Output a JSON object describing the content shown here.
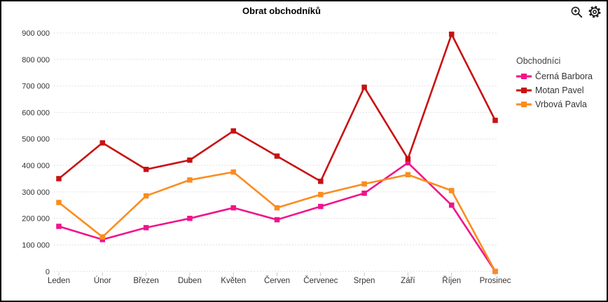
{
  "header": {
    "title": "Obrat obchodníků"
  },
  "toolbar": {
    "zoom_button": "zoom-in",
    "settings_button": "settings"
  },
  "icon_color": "#1a1a1a",
  "chart_data": {
    "type": "line",
    "title": "Obrat obchodníků",
    "legend_title": "Obchodníci",
    "legend_position": "right",
    "grid": "horizontal-dotted",
    "xlabel": "",
    "ylabel": "",
    "ylim": [
      0,
      900000
    ],
    "categories": [
      "Leden",
      "Únor",
      "Březen",
      "Duben",
      "Květen",
      "Červen",
      "Červenec",
      "Srpen",
      "Září",
      "Říjen",
      "Prosinec"
    ],
    "y_ticks": [
      {
        "value": 0,
        "label": "0"
      },
      {
        "value": 100000,
        "label": "100 000"
      },
      {
        "value": 200000,
        "label": "200 000"
      },
      {
        "value": 300000,
        "label": "300 000"
      },
      {
        "value": 400000,
        "label": "400 000"
      },
      {
        "value": 500000,
        "label": "500 000"
      },
      {
        "value": 600000,
        "label": "600 000"
      },
      {
        "value": 700000,
        "label": "700 000"
      },
      {
        "value": 800000,
        "label": "800 000"
      },
      {
        "value": 900000,
        "label": "900 000"
      }
    ],
    "series": [
      {
        "id": "cerna-barbora",
        "name": "Černá Barbora",
        "color": "#F0148C",
        "values": [
          170000,
          120000,
          165000,
          200000,
          240000,
          195000,
          245000,
          295000,
          410000,
          250000,
          0
        ]
      },
      {
        "id": "motan-pavel",
        "name": "Motan Pavel",
        "color": "#C81111",
        "values": [
          350000,
          485000,
          385000,
          420000,
          530000,
          435000,
          340000,
          695000,
          425000,
          895000,
          570000
        ]
      },
      {
        "id": "vrbova-pavla",
        "name": "Vrbová Pavla",
        "color": "#FB8C1E",
        "values": [
          260000,
          130000,
          285000,
          345000,
          375000,
          240000,
          290000,
          330000,
          365000,
          305000,
          0
        ]
      }
    ]
  }
}
